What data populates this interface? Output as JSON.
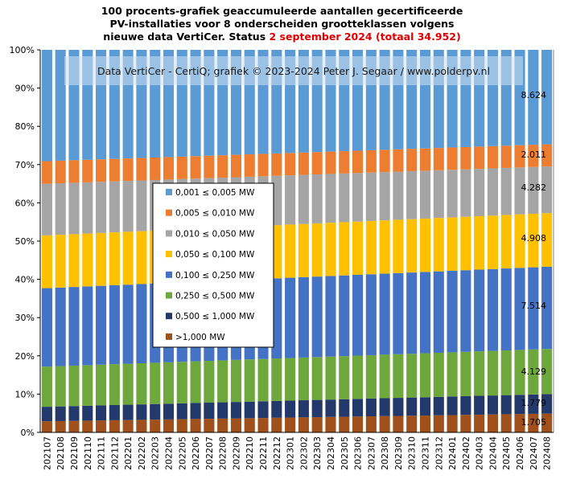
{
  "title": {
    "line1": "100 procents-grafiek geaccumuleerde aantallen gecertificeerde",
    "line2": "PV-installaties voor 8 onderscheiden grootteklassen volgens",
    "line3_prefix": "nieuwe data VertiCer. Status ",
    "line3_highlight": "2 september 2024 (totaal 34.952)"
  },
  "watermark": "Data VertiCer - CertiQ; grafiek © 2023-2024 Peter J. Segaar / www.polderpv.nl",
  "chart_data": {
    "type": "bar",
    "stacked": "percent",
    "y_tick_labels": [
      "0%",
      "10%",
      "20%",
      "30%",
      "40%",
      "50%",
      "60%",
      "70%",
      "80%",
      "90%",
      "100%"
    ],
    "ylim": [
      0,
      100
    ],
    "categories": [
      "202107",
      "202108",
      "202109",
      "202110",
      "202111",
      "202112",
      "202201",
      "202202",
      "202203",
      "202204",
      "202205",
      "202206",
      "202207",
      "202208",
      "202209",
      "202210",
      "202211",
      "202212",
      "202301",
      "202302",
      "202303",
      "202304",
      "202305",
      "202306",
      "202307",
      "202308",
      "202309",
      "202310",
      "202311",
      "202312",
      "202401",
      "202402",
      "202403",
      "202404",
      "202405",
      "202406",
      "202407",
      "202408"
    ],
    "series": [
      {
        "name": ">1,000 MW",
        "color": "#a0501a",
        "start": 2.9,
        "end": 4.9
      },
      {
        "name": "0,500 ≤  1,000 MW",
        "color": "#23396b",
        "start": 3.8,
        "end": 5.1
      },
      {
        "name": "0,250 ≤  0,500 MW",
        "color": "#6ea83c",
        "start": 10.5,
        "end": 11.8
      },
      {
        "name": "0,100 ≤  0,250 MW",
        "color": "#4472c4",
        "start": 20.5,
        "end": 21.5
      },
      {
        "name": "0,050 ≤  0,100 MW",
        "color": "#ffc000",
        "start": 13.8,
        "end": 14.0
      },
      {
        "name": "0,010 ≤  0,050 MW",
        "color": "#a5a5a5",
        "start": 13.5,
        "end": 12.2
      },
      {
        "name": "0,005 ≤  0,010 MW",
        "color": "#ed7d31",
        "start": 5.9,
        "end": 5.8
      },
      {
        "name": "0,001 ≤  0,005 MW",
        "color": "#5b9bd5",
        "start": 29.1,
        "end": 24.7
      }
    ],
    "last_bar_labels": [
      "1.705",
      "1.779",
      "4.129",
      "7.514",
      "4.908",
      "4.282",
      "2.011",
      "8.624"
    ],
    "legend_order": [
      "0,001 ≤  0,005 MW",
      "0,005 ≤  0,010 MW",
      "0,010 ≤  0,050 MW",
      "0,050 ≤  0,100 MW",
      "0,100 ≤  0,250 MW",
      "0,250 ≤  0,500 MW",
      "0,500 ≤  1,000 MW",
      ">1,000 MW"
    ],
    "legend_position": "center-left inside plot",
    "grid": false
  }
}
